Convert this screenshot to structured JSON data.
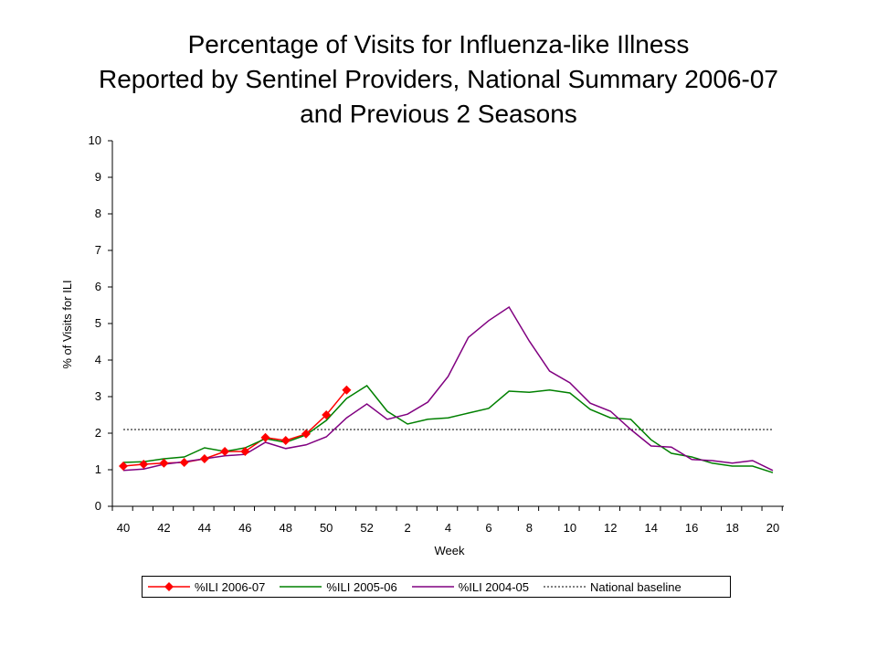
{
  "chart_data": {
    "type": "line",
    "title_lines": [
      "Percentage of Visits for Influenza-like Illness",
      "Reported by Sentinel Providers, National Summary 2006-07",
      "and Previous 2 Seasons"
    ],
    "xlabel": "Week",
    "ylabel": "% of Visits for ILI",
    "ylim": [
      0,
      10
    ],
    "yticks": [
      0,
      1,
      2,
      3,
      4,
      5,
      6,
      7,
      8,
      9,
      10
    ],
    "weeks": [
      40,
      41,
      42,
      43,
      44,
      45,
      46,
      47,
      48,
      49,
      50,
      51,
      52,
      1,
      2,
      3,
      4,
      5,
      6,
      7,
      8,
      9,
      10,
      11,
      12,
      13,
      14,
      15,
      16,
      17,
      18,
      19,
      20
    ],
    "xtick_labels": [
      "40",
      "42",
      "44",
      "46",
      "48",
      "50",
      "52",
      "2",
      "4",
      "6",
      "8",
      "10",
      "12",
      "14",
      "16",
      "18",
      "20"
    ],
    "grid": false,
    "legend_position": "bottom",
    "series": [
      {
        "name": "%ILI 2006-07",
        "color": "#FF0000",
        "marker": "diamond",
        "values": [
          1.1,
          1.15,
          1.18,
          1.2,
          1.3,
          1.5,
          1.5,
          1.88,
          1.8,
          1.98,
          2.5,
          3.18
        ]
      },
      {
        "name": "%ILI 2005-06",
        "color": "#008000",
        "values": [
          1.2,
          1.22,
          1.3,
          1.35,
          1.6,
          1.5,
          1.6,
          1.85,
          1.75,
          1.95,
          2.35,
          2.95,
          3.3,
          2.6,
          2.25,
          2.38,
          2.42,
          2.55,
          2.68,
          3.15,
          3.12,
          3.18,
          3.1,
          2.65,
          2.42,
          2.38,
          1.82,
          1.45,
          1.35,
          1.18,
          1.1,
          1.1,
          0.92
        ]
      },
      {
        "name": "%ILI 2004-05",
        "color": "#800080",
        "values": [
          0.98,
          1.02,
          1.15,
          1.22,
          1.3,
          1.38,
          1.42,
          1.75,
          1.58,
          1.68,
          1.9,
          2.42,
          2.8,
          2.38,
          2.52,
          2.85,
          3.55,
          4.62,
          5.08,
          5.45,
          4.52,
          3.7,
          3.38,
          2.82,
          2.6,
          2.1,
          1.65,
          1.62,
          1.28,
          1.25,
          1.18,
          1.25,
          0.98
        ]
      },
      {
        "name": "National baseline",
        "color": "#000000",
        "dashed": true,
        "value": 2.1
      }
    ]
  }
}
